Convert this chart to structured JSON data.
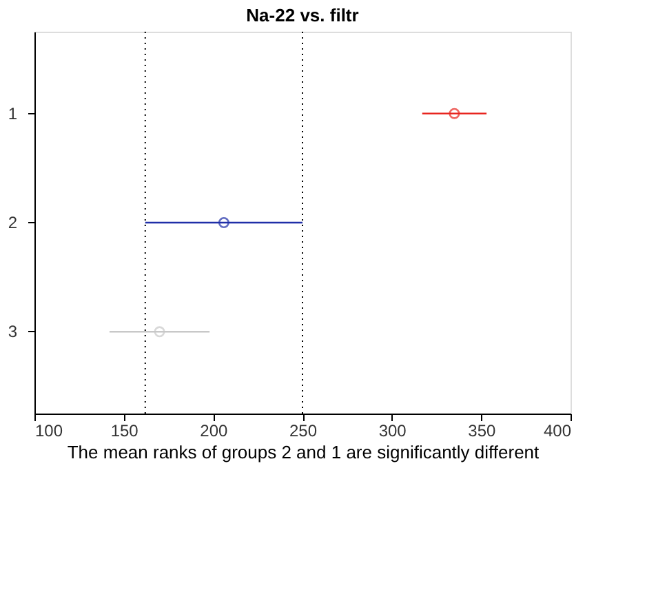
{
  "chart_data": {
    "type": "scatter",
    "orientation": "horizontal",
    "title": "Na-22 vs. filtr",
    "xlabel": "The mean ranks of groups 2 and 1 are significantly different",
    "categories": [
      "1",
      "2",
      "3"
    ],
    "values": [
      335,
      206,
      170
    ],
    "colors": [
      "#e8251f",
      "#1f2fa8",
      "#c8c8c8"
    ],
    "errors": [
      [
        317,
        353
      ],
      [
        162,
        250
      ],
      [
        142,
        198
      ]
    ],
    "xlim": [
      100,
      400
    ],
    "xticks": [
      100,
      150,
      200,
      250,
      300,
      350,
      400
    ],
    "ref_lines": [
      {
        "axis": "x",
        "value": 162,
        "line_style": "dotted",
        "color": "#000000"
      },
      {
        "axis": "x",
        "value": 250,
        "line_style": "dotted",
        "color": "#000000"
      }
    ],
    "marker": "circle",
    "grid": false,
    "legend": false
  }
}
